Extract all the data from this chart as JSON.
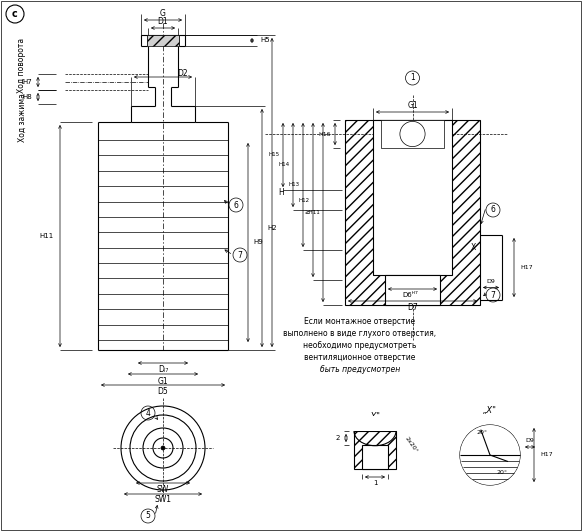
{
  "bg_color": "#ffffff",
  "line_color": "#000000",
  "fig_width": 5.82,
  "fig_height": 5.31,
  "dpi": 100,
  "note_lines": [
    "Если монтажное отверстие",
    "выполнено в виде глухого отверстия,",
    "необходимо предусмотреть",
    "вентиляционное отверстие",
    "быть предусмотрен"
  ]
}
